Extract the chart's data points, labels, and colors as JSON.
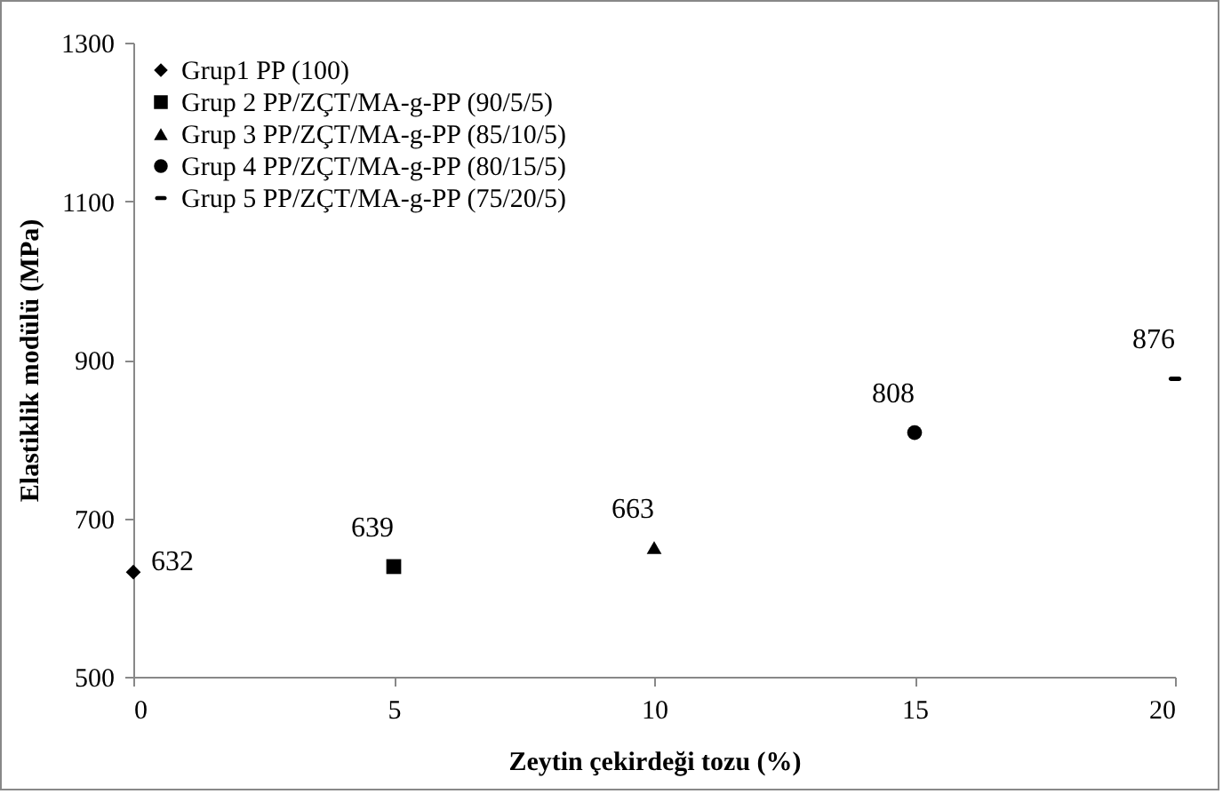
{
  "chart_data": {
    "type": "scatter",
    "xlabel": "Zeytin çekirdeği tozu (%)",
    "ylabel": "Elastiklik modülü (MPa)",
    "series": [
      {
        "name": "Grup1 PP (100)",
        "color": "#000000",
        "marker": "diamond",
        "x": [
          0
        ],
        "values": [
          632
        ]
      },
      {
        "name": "Grup 2 PP/ZÇT/MA-g-PP (90/5/5)",
        "color": "#000000",
        "marker": "square",
        "x": [
          5
        ],
        "values": [
          639
        ]
      },
      {
        "name": "Grup 3 PP/ZÇT/MA-g-PP (85/10/5)",
        "color": "#000000",
        "marker": "triangle",
        "x": [
          10
        ],
        "values": [
          663
        ]
      },
      {
        "name": "Grup 4 PP/ZÇT/MA-g-PP (80/15/5)",
        "color": "#000000",
        "marker": "circle",
        "x": [
          15
        ],
        "values": [
          808
        ]
      },
      {
        "name": "Grup 5 PP/ZÇT/MA-g-PP (75/20/5)",
        "color": "#000000",
        "x": [
          20
        ],
        "values": [
          876
        ]
      }
    ],
    "xlim": [
      0,
      20
    ],
    "xticks": [
      0,
      5,
      10,
      15,
      20
    ],
    "ylim": [
      500,
      1300
    ],
    "yticks": [
      500,
      700,
      900,
      1100,
      1300
    ],
    "grid": false,
    "legend": "top left",
    "data_labels": true
  }
}
